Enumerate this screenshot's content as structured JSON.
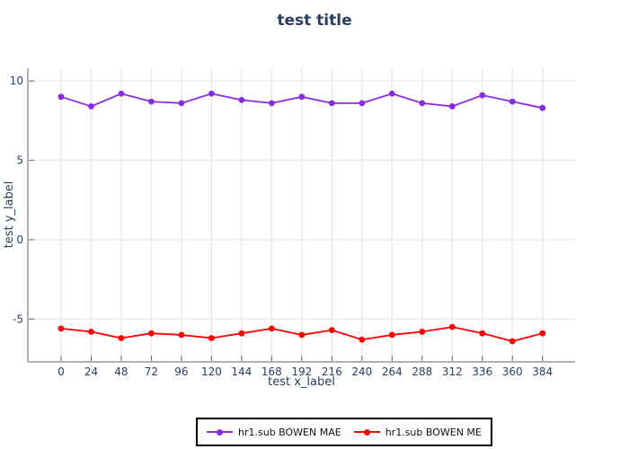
{
  "figure": {
    "background": "#ffffff"
  },
  "chart_data": {
    "type": "line",
    "title": "test title",
    "xlabel": "test x_label",
    "ylabel": "test y_label",
    "x": [
      0,
      24,
      48,
      72,
      96,
      120,
      144,
      168,
      192,
      216,
      240,
      264,
      288,
      312,
      336,
      360,
      384
    ],
    "xticks": [
      0,
      24,
      48,
      72,
      96,
      120,
      144,
      168,
      192,
      216,
      240,
      264,
      288,
      312,
      336,
      360,
      384
    ],
    "yticks": [
      -5,
      0,
      5,
      10
    ],
    "xlim": [
      -26.5,
      410
    ],
    "ylim": [
      -7.7,
      10.8
    ],
    "grid": true,
    "legend_position": "bottom-center",
    "marker": "circle",
    "series": [
      {
        "name": "hr1.sub BOWEN MAE",
        "color": "#8A2BE2",
        "values": [
          9.0,
          8.4,
          9.2,
          8.7,
          8.6,
          9.2,
          8.8,
          8.6,
          9.0,
          8.6,
          8.6,
          9.2,
          8.6,
          8.4,
          9.1,
          8.7,
          8.3
        ]
      },
      {
        "name": "hr1.sub BOWEN ME",
        "color": "#FF0000",
        "values": [
          -5.6,
          -5.8,
          -6.2,
          -5.9,
          -6.0,
          -6.2,
          -5.9,
          -5.6,
          -6.0,
          -5.7,
          -6.3,
          -6.0,
          -5.8,
          -5.5,
          -5.9,
          -6.4,
          -5.9
        ]
      }
    ],
    "colors": {
      "text": "#2a3f5f",
      "grid": "#e9e9e9",
      "axis_line": "#b0b0b8",
      "tick": "#666666",
      "legend_border": "#000000",
      "legend_bg": "#ffffff"
    }
  }
}
